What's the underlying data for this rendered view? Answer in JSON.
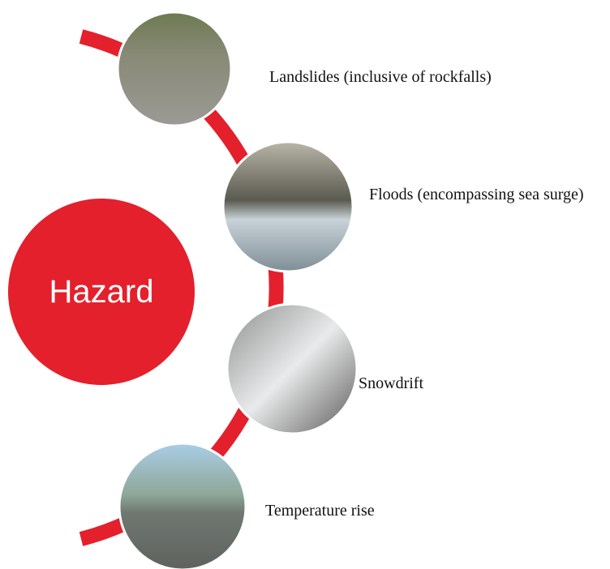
{
  "center": {
    "label": "Hazard"
  },
  "items": [
    {
      "label": "Landslides (inclusive of rockfalls)"
    },
    {
      "label": "Floods (encompassing sea surge)"
    },
    {
      "label": "Snowdrift"
    },
    {
      "label": "Temperature rise"
    }
  ]
}
